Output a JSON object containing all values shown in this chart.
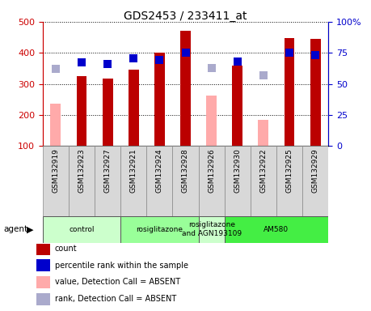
{
  "title": "GDS2453 / 233411_at",
  "samples": [
    "GSM132919",
    "GSM132923",
    "GSM132927",
    "GSM132921",
    "GSM132924",
    "GSM132928",
    "GSM132926",
    "GSM132930",
    "GSM132922",
    "GSM132925",
    "GSM132929"
  ],
  "bar_values": [
    null,
    325,
    317,
    345,
    400,
    470,
    null,
    360,
    null,
    447,
    446
  ],
  "bar_color": "#bb0000",
  "absent_value_bars": [
    237,
    null,
    null,
    null,
    null,
    null,
    263,
    null,
    185,
    null,
    null
  ],
  "absent_value_color": "#ffaaaa",
  "rank_dots": [
    null,
    370,
    363,
    382,
    378,
    400,
    null,
    372,
    null,
    400,
    393
  ],
  "rank_dot_color": "#0000cc",
  "absent_rank_dots": [
    348,
    null,
    null,
    null,
    null,
    null,
    352,
    null,
    328,
    null,
    null
  ],
  "absent_rank_color": "#aaaacc",
  "ylim_left": [
    100,
    500
  ],
  "ylim_right": [
    0,
    100
  ],
  "yticks_left": [
    100,
    200,
    300,
    400,
    500
  ],
  "ytick_labels_left": [
    "100",
    "200",
    "300",
    "400",
    "500"
  ],
  "yticks_right": [
    0,
    25,
    50,
    75,
    100
  ],
  "ytick_labels_right": [
    "0",
    "25",
    "50",
    "75",
    "100%"
  ],
  "groups": [
    {
      "label": "control",
      "start": 0,
      "end": 3,
      "color": "#ccffcc"
    },
    {
      "label": "rosiglitazone",
      "start": 3,
      "end": 6,
      "color": "#99ff99"
    },
    {
      "label": "rosiglitazone\nand AGN193109",
      "start": 6,
      "end": 7,
      "color": "#ccffcc"
    },
    {
      "label": "AM580",
      "start": 7,
      "end": 11,
      "color": "#44ee44"
    }
  ],
  "agent_label": "agent",
  "legend_items": [
    {
      "label": "count",
      "color": "#bb0000"
    },
    {
      "label": "percentile rank within the sample",
      "color": "#0000cc"
    },
    {
      "label": "value, Detection Call = ABSENT",
      "color": "#ffaaaa"
    },
    {
      "label": "rank, Detection Call = ABSENT",
      "color": "#aaaacc"
    }
  ],
  "bar_width": 0.4,
  "dot_size": 50,
  "left_axis_color": "#cc0000",
  "right_axis_color": "#0000cc"
}
